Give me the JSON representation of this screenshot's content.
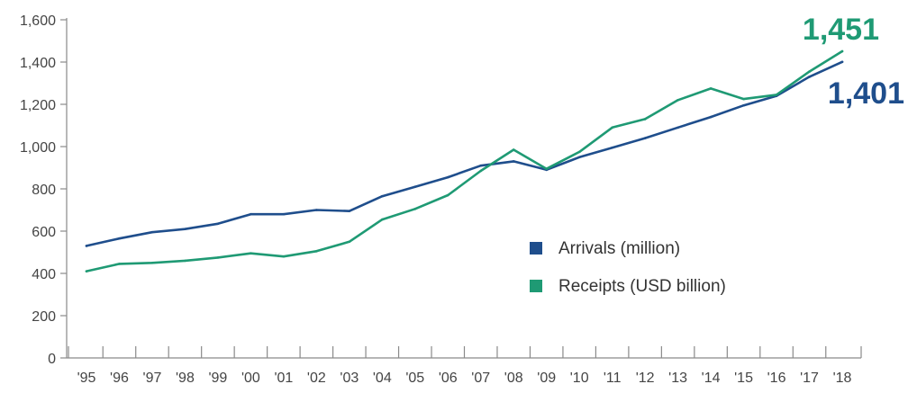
{
  "chart_data": {
    "type": "line",
    "x": [
      "'95",
      "'96",
      "'97",
      "'98",
      "'99",
      "'00",
      "'01",
      "'02",
      "'03",
      "'04",
      "'05",
      "'06",
      "'07",
      "'08",
      "'09",
      "'10",
      "'11",
      "'12",
      "'13",
      "'14",
      "'15",
      "'16",
      "'17",
      "'18"
    ],
    "ylim": [
      0,
      1600
    ],
    "yticks": [
      "0",
      "200",
      "400",
      "600",
      "800",
      "1,000",
      "1,200",
      "1,400",
      "1,600"
    ],
    "yticks_values": [
      0,
      200,
      400,
      600,
      800,
      1000,
      1200,
      1400,
      1600
    ],
    "grid": false,
    "legend_position": "right",
    "series": [
      {
        "name": "Arrivals (million)",
        "color": "#1f4e8c",
        "values": [
          530,
          565,
          595,
          610,
          635,
          680,
          680,
          700,
          695,
          765,
          810,
          855,
          910,
          930,
          890,
          950,
          995,
          1040,
          1090,
          1140,
          1195,
          1240,
          1330,
          1401
        ],
        "end_label": "1,401"
      },
      {
        "name": "Receipts (USD billion)",
        "color": "#1f9a74",
        "values": [
          410,
          445,
          450,
          460,
          475,
          495,
          480,
          505,
          550,
          655,
          705,
          770,
          885,
          985,
          895,
          975,
          1090,
          1130,
          1220,
          1275,
          1225,
          1245,
          1355,
          1451
        ],
        "end_label": "1,451"
      }
    ]
  },
  "colors": {
    "axis": "#8a8a8a",
    "tick_text": "#444444"
  }
}
